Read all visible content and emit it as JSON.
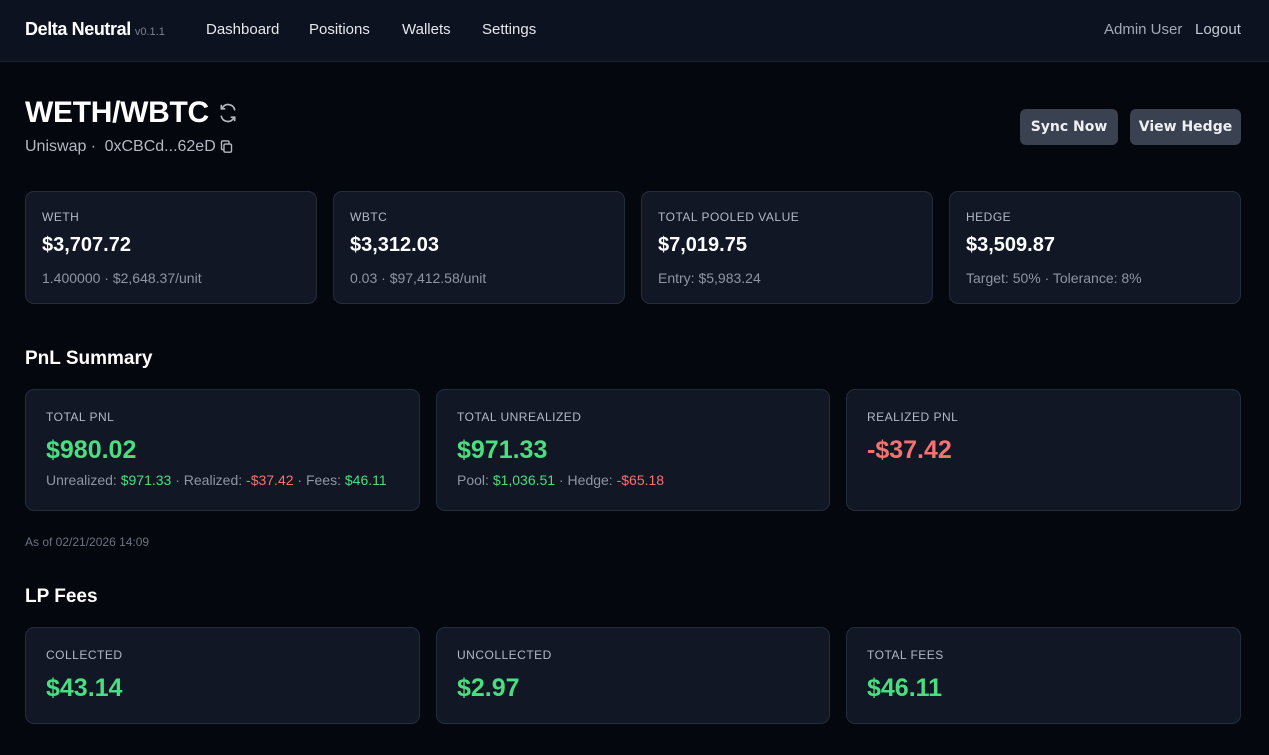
{
  "nav": {
    "brand": "Delta Neutral",
    "version": "v0.1.1",
    "links": [
      "Dashboard",
      "Positions",
      "Wallets",
      "Settings"
    ],
    "user": "Admin User",
    "logout": "Logout"
  },
  "header": {
    "title": "WETH/WBTC",
    "protocol": "Uniswap ·",
    "address": "0xCBCd...62eD",
    "sync_label": "Sync Now",
    "view_hedge_label": "View Hedge"
  },
  "stats": [
    {
      "label": "WETH",
      "value": "$3,707.72",
      "sub": "1.400000 · $2,648.37/unit"
    },
    {
      "label": "WBTC",
      "value": "$3,312.03",
      "sub": "0.03 · $97,412.58/unit"
    },
    {
      "label": "Total Pooled Value",
      "value": "$7,019.75",
      "sub": "Entry: $5,983.24"
    },
    {
      "label": "Hedge",
      "value": "$3,509.87",
      "sub": "Target: 50% · Tolerance: 8%"
    }
  ],
  "pnl": {
    "title": "PnL Summary",
    "total": {
      "label": "Total PnL",
      "value": "$980.02",
      "unrealized_label": "Unrealized:",
      "unrealized": "$971.33",
      "realized_label": "· Realized:",
      "realized": "-$37.42",
      "fees_label": "· Fees:",
      "fees": "$46.11"
    },
    "unrealized": {
      "label": "Total Unrealized",
      "value": "$971.33",
      "pool_label": "Pool:",
      "pool": "$1,036.51",
      "hedge_label": "· Hedge:",
      "hedge": "-$65.18"
    },
    "realized": {
      "label": "Realized PnL",
      "value": "-$37.42"
    },
    "as_of": "As of 02/21/2026 14:09"
  },
  "fees": {
    "title": "LP Fees",
    "collected": {
      "label": "Collected",
      "value": "$43.14"
    },
    "uncollected": {
      "label": "Uncollected",
      "value": "$2.97"
    },
    "total": {
      "label": "Total Fees",
      "value": "$46.11"
    }
  },
  "colors": {
    "positive": "#4ade80",
    "negative": "#f87171",
    "background": "#05070f",
    "card": "#111725"
  }
}
